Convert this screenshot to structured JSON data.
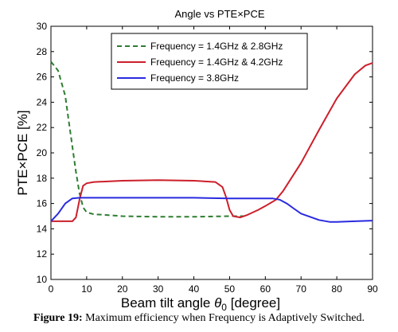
{
  "chart_data": {
    "type": "line",
    "title": "Angle vs PTE×PCE",
    "xlabel": "Beam tilt angle",
    "xlabel_symbol": "θ",
    "xlabel_subscript": "0",
    "xlabel_unit": "[degree]",
    "ylabel": "PTE×PCE [%]",
    "xlim": [
      0,
      90
    ],
    "ylim": [
      10,
      30
    ],
    "xticks": [
      0,
      10,
      20,
      30,
      40,
      50,
      60,
      70,
      80,
      90
    ],
    "yticks": [
      10,
      12,
      14,
      16,
      18,
      20,
      22,
      24,
      26,
      28,
      30
    ],
    "grid": false,
    "legend_position": "top-right",
    "series": [
      {
        "name": "Frequency = 1.4GHz & 2.8GHz",
        "color": "#2e7d32",
        "style": "dashed",
        "x": [
          0,
          2,
          4,
          5,
          6,
          7,
          8,
          9,
          10,
          12,
          15,
          20,
          30,
          40,
          50,
          55
        ],
        "y": [
          27.2,
          26.5,
          24.5,
          22.5,
          20.5,
          18.5,
          16.8,
          15.7,
          15.3,
          15.15,
          15.1,
          15.0,
          14.95,
          14.95,
          15.0,
          15.0
        ]
      },
      {
        "name": "Frequency = 1.4GHz & 4.2GHz",
        "color": "#cc1f2b",
        "style": "solid",
        "x": [
          0,
          3,
          6,
          7,
          8,
          9,
          10,
          12,
          20,
          30,
          40,
          46,
          48,
          49,
          50,
          51,
          53,
          55,
          58,
          60,
          63,
          65,
          70,
          75,
          80,
          85,
          88,
          90
        ],
        "y": [
          14.6,
          14.6,
          14.6,
          14.9,
          16.3,
          17.4,
          17.6,
          17.7,
          17.8,
          17.85,
          17.8,
          17.7,
          17.3,
          16.5,
          15.5,
          15.0,
          14.9,
          15.1,
          15.5,
          15.8,
          16.3,
          17.0,
          19.2,
          21.8,
          24.3,
          26.2,
          26.9,
          27.1
        ]
      },
      {
        "name": "Frequency = 3.8GHz",
        "color": "#2a2ae0",
        "style": "solid",
        "x": [
          0,
          2,
          4,
          6,
          8,
          10,
          20,
          30,
          40,
          50,
          58,
          62,
          64,
          66,
          68,
          70,
          75,
          78,
          80,
          85,
          90
        ],
        "y": [
          14.6,
          15.2,
          16.0,
          16.4,
          16.45,
          16.45,
          16.45,
          16.45,
          16.45,
          16.4,
          16.4,
          16.4,
          16.3,
          16.0,
          15.6,
          15.2,
          14.7,
          14.55,
          14.55,
          14.6,
          14.65
        ]
      }
    ]
  },
  "caption": {
    "label": "Figure 19:",
    "text": "Maximum efficiency when Frequency is Adaptively Switched."
  }
}
